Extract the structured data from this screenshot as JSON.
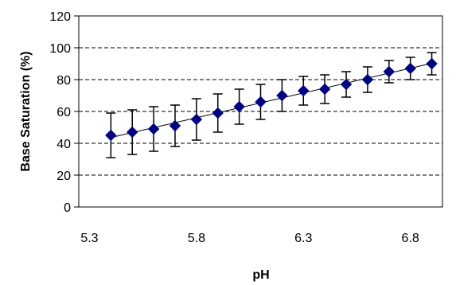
{
  "chart_data": {
    "type": "scatter",
    "title": "",
    "xlabel": "pH",
    "ylabel": "Base Saturation (%)",
    "xlim": [
      5.25,
      6.95
    ],
    "ylim": [
      0,
      120
    ],
    "x_ticks": [
      "5.3",
      "5.8",
      "6.3",
      "6.8"
    ],
    "y_ticks": [
      "0",
      "20",
      "40",
      "60",
      "80",
      "100",
      "120"
    ],
    "grid": "horizontal dashed",
    "legend": "none",
    "marker": "diamond",
    "marker_color": "#000080",
    "trendline": "linear",
    "series": [
      {
        "x": [
          5.4,
          5.5,
          5.6,
          5.7,
          5.8,
          5.9,
          6.0,
          6.1,
          6.2,
          6.3,
          6.4,
          6.5,
          6.6,
          6.7,
          6.8,
          6.9
        ],
        "y": [
          45,
          47,
          49,
          51,
          55,
          59,
          63,
          66,
          70,
          73,
          74,
          77,
          80,
          85,
          87,
          90
        ],
        "error": [
          14,
          14,
          14,
          13,
          13,
          12,
          11,
          11,
          10,
          9,
          9,
          8,
          8,
          7,
          7,
          7
        ]
      }
    ]
  }
}
